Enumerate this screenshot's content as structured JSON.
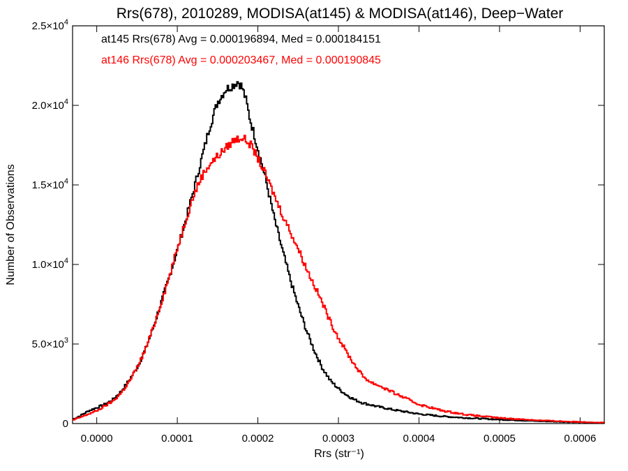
{
  "chart_data": {
    "type": "line",
    "title": "Rrs(678), 2010289, MODISA(at145) & MODISA(at146), Deep−Water",
    "xlabel": "Rrs (str⁻¹)",
    "ylabel": "Number of Observations",
    "xlim": [
      -3e-05,
      0.00063
    ],
    "ylim": [
      0,
      25000
    ],
    "x_ticks": [
      {
        "value": 0.0,
        "label": "0.0000"
      },
      {
        "value": 0.0001,
        "label": "0.0001"
      },
      {
        "value": 0.0002,
        "label": "0.0002"
      },
      {
        "value": 0.0003,
        "label": "0.0003"
      },
      {
        "value": 0.0004,
        "label": "0.0004"
      },
      {
        "value": 0.0005,
        "label": "0.0005"
      },
      {
        "value": 0.0006,
        "label": "0.0006"
      }
    ],
    "y_ticks": [
      {
        "value": 0,
        "mant": "0",
        "exp": ""
      },
      {
        "value": 5000,
        "mant": "5.0×10",
        "exp": "3"
      },
      {
        "value": 10000,
        "mant": "1.0×10",
        "exp": "4"
      },
      {
        "value": 15000,
        "mant": "1.5×10",
        "exp": "4"
      },
      {
        "value": 20000,
        "mant": "2.0×10",
        "exp": "4"
      },
      {
        "value": 25000,
        "mant": "2.5×10",
        "exp": "4"
      }
    ],
    "legend_entries": [
      {
        "text": "at145 Rrs(678) Avg = 0.000196894, Med = 0.000184151",
        "color": "#000000"
      },
      {
        "text": "at146 Rrs(678) Avg = 0.000203467, Med = 0.000190845",
        "color": "#ff0000"
      }
    ],
    "legend_position": "top-left",
    "grid": false,
    "step": true,
    "series": [
      {
        "color": "#000000",
        "x": [
          -3e-05,
          -2e-05,
          -1e-05,
          0.0,
          1e-05,
          2e-05,
          3e-05,
          4e-05,
          5e-05,
          6e-05,
          7e-05,
          8e-05,
          9e-05,
          0.0001,
          0.00011,
          0.00012,
          0.00013,
          0.00014,
          0.00015,
          0.00016,
          0.00017,
          0.000175,
          0.00018,
          0.000185,
          0.00019,
          0.0002,
          0.00021,
          0.00022,
          0.00023,
          0.00024,
          0.00025,
          0.00026,
          0.00027,
          0.00028,
          0.00029,
          0.0003,
          0.00031,
          0.00032,
          0.00033,
          0.00035,
          0.00037,
          0.0004,
          0.00043,
          0.00046,
          0.0005,
          0.00055,
          0.0006,
          0.00063
        ],
        "y": [
          250,
          500,
          800,
          1000,
          1200,
          1500,
          2000,
          2700,
          3500,
          4600,
          6000,
          7600,
          9200,
          10900,
          12700,
          14600,
          16600,
          18600,
          20200,
          21000,
          21300,
          21500,
          21200,
          20400,
          19200,
          17300,
          15300,
          13000,
          11000,
          9100,
          7400,
          5900,
          4600,
          3500,
          2700,
          2200,
          1800,
          1500,
          1300,
          1050,
          850,
          600,
          450,
          350,
          250,
          150,
          80,
          40
        ]
      },
      {
        "color": "#ff0000",
        "x": [
          -3e-05,
          -2e-05,
          -1e-05,
          0.0,
          1e-05,
          2e-05,
          3e-05,
          4e-05,
          5e-05,
          6e-05,
          7e-05,
          8e-05,
          9e-05,
          0.0001,
          0.00011,
          0.00012,
          0.00013,
          0.00014,
          0.00015,
          0.00016,
          0.00017,
          0.00018,
          0.00019,
          0.0002,
          0.00021,
          0.00022,
          0.00023,
          0.00024,
          0.00025,
          0.00026,
          0.00027,
          0.00028,
          0.00029,
          0.0003,
          0.00031,
          0.00032,
          0.00033,
          0.00034,
          0.00035,
          0.00037,
          0.0004,
          0.00043,
          0.00046,
          0.0005,
          0.00055,
          0.0006,
          0.00063
        ],
        "y": [
          200,
          400,
          600,
          800,
          1100,
          1400,
          1900,
          2600,
          3500,
          4600,
          6000,
          7600,
          9200,
          11000,
          12700,
          14300,
          15500,
          16300,
          16800,
          17300,
          17800,
          18000,
          17600,
          16700,
          15600,
          14400,
          13200,
          12100,
          11000,
          9800,
          8700,
          7600,
          6400,
          5400,
          4500,
          3700,
          3000,
          2600,
          2400,
          1900,
          1200,
          800,
          550,
          350,
          200,
          100,
          60
        ]
      }
    ]
  }
}
